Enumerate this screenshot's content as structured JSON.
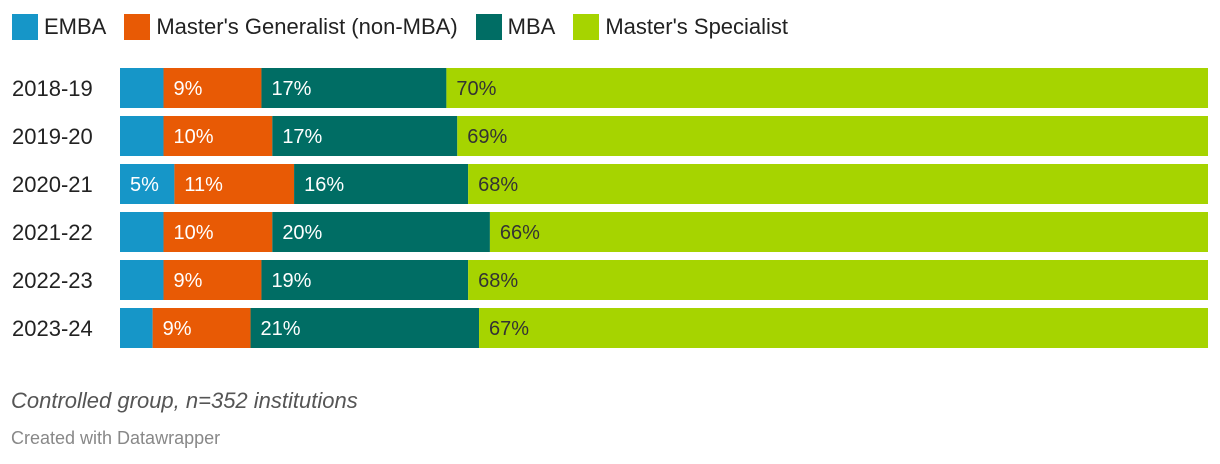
{
  "chart_data": {
    "type": "bar",
    "orientation": "horizontal",
    "stacked": true,
    "normalized_to": 100,
    "categories": [
      "2018-19",
      "2019-20",
      "2020-21",
      "2021-22",
      "2022-23",
      "2023-24"
    ],
    "series": [
      {
        "name": "EMBA",
        "color": "#1696c8",
        "text_color": "#ffffff",
        "values": [
          4,
          4,
          5,
          4,
          4,
          3
        ],
        "labels": [
          "",
          "",
          "5%",
          "",
          "",
          ""
        ]
      },
      {
        "name": "Master's Generalist (non-MBA)",
        "color": "#e85a05",
        "text_color": "#ffffff",
        "values": [
          9,
          10,
          11,
          10,
          9,
          9
        ],
        "labels": [
          "9%",
          "10%",
          "11%",
          "10%",
          "9%",
          "9%"
        ]
      },
      {
        "name": "MBA",
        "color": "#006d64",
        "text_color": "#ffffff",
        "values": [
          17,
          17,
          16,
          20,
          19,
          21
        ],
        "labels": [
          "17%",
          "17%",
          "16%",
          "20%",
          "19%",
          "21%"
        ]
      },
      {
        "name": "Master's Specialist",
        "color": "#a6d400",
        "text_color": "#333333",
        "values": [
          70,
          69,
          68,
          66,
          68,
          67
        ],
        "labels": [
          "70%",
          "69%",
          "68%",
          "66%",
          "68%",
          "67%"
        ]
      }
    ],
    "xlim": [
      0,
      100
    ],
    "grid": false,
    "legend_position": "top-left"
  },
  "note": "Controlled group, n=352 institutions",
  "credit": "Created with Datawrapper"
}
